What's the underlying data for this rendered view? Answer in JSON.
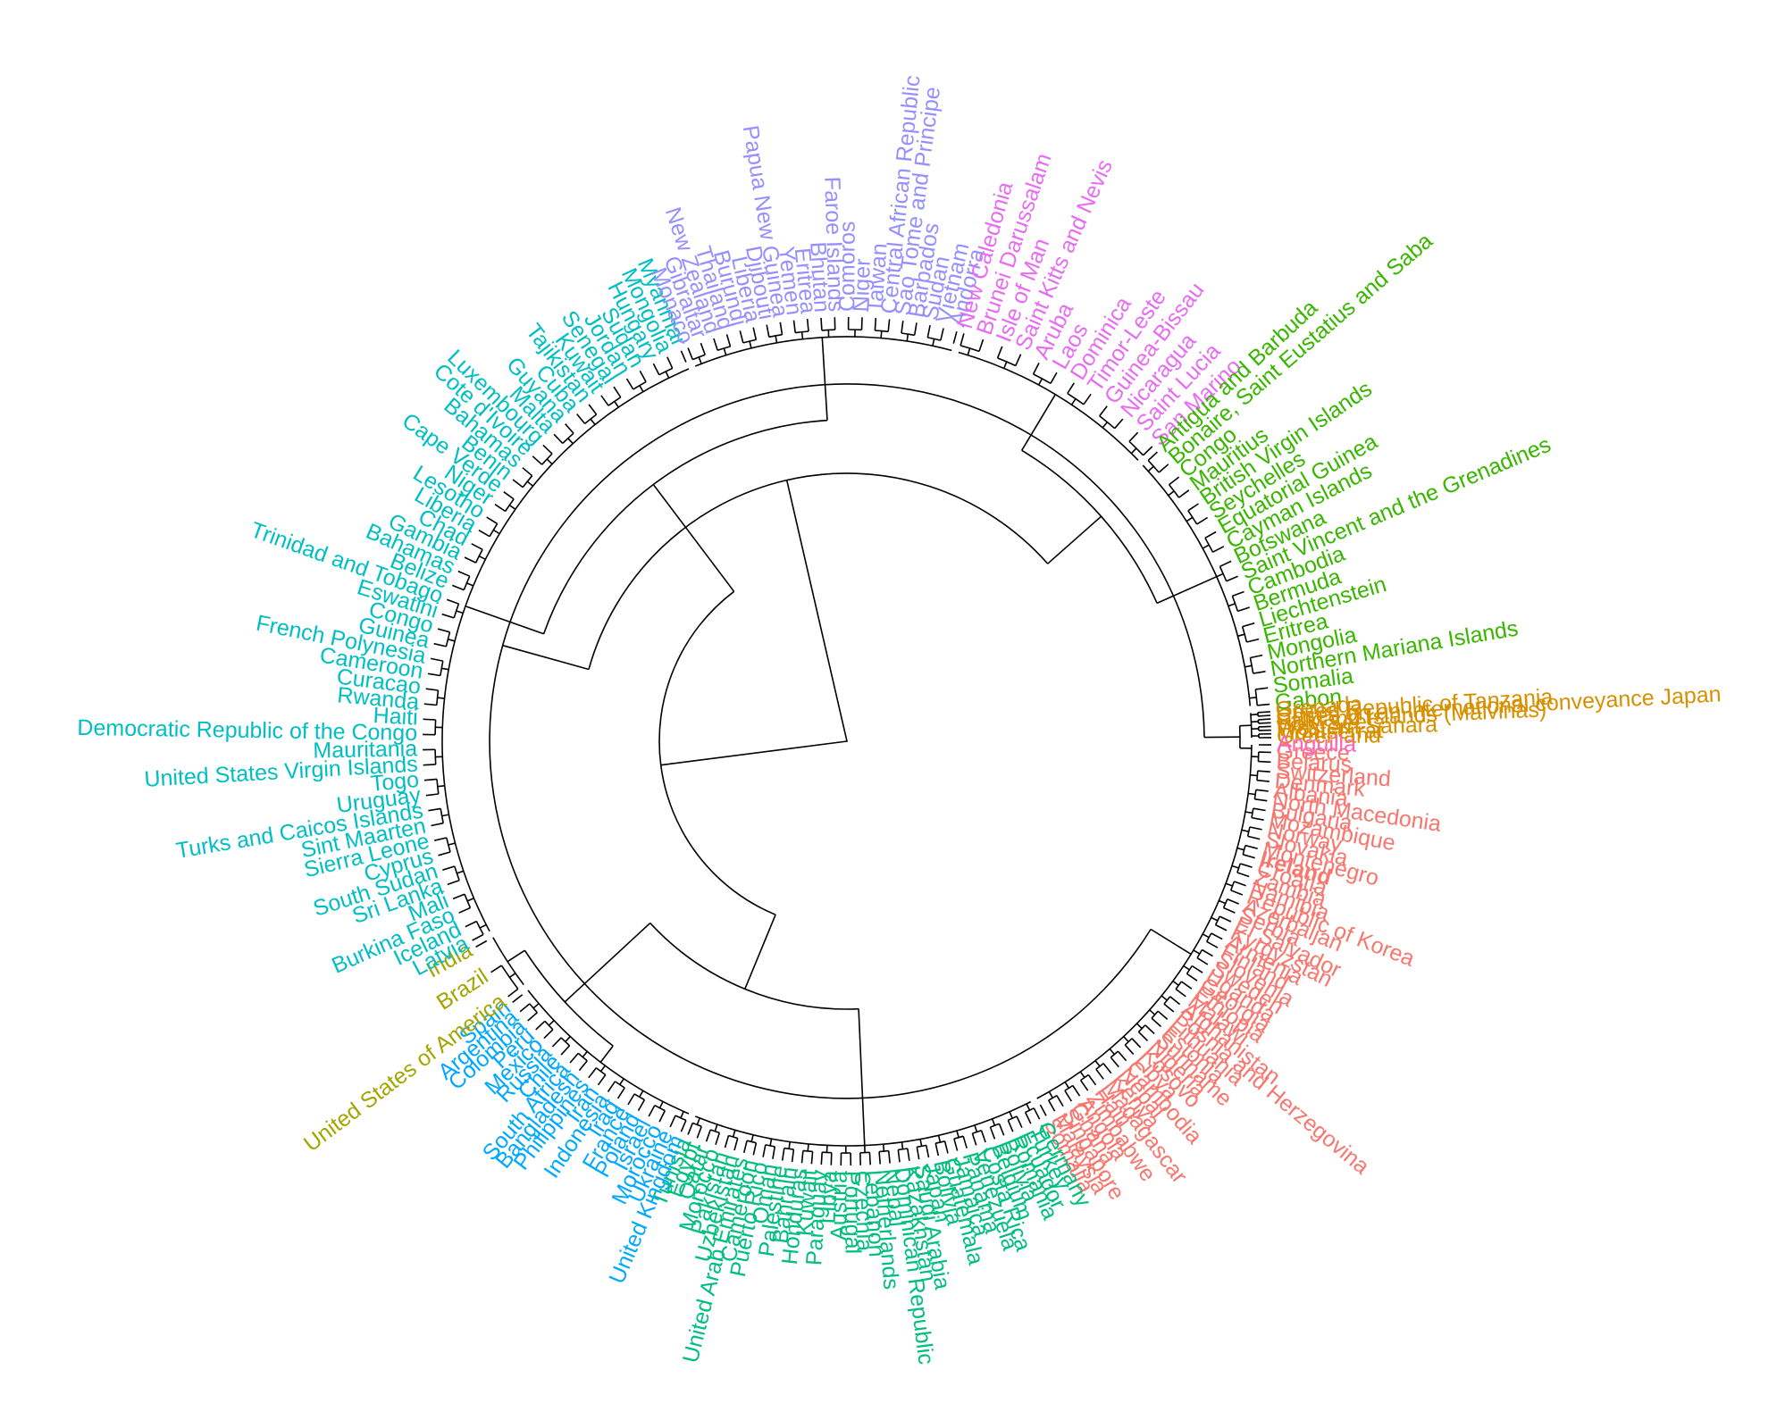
{
  "clusters": [
    {
      "name": "red",
      "color": "#F8766D",
      "leaves": [
        "Greece",
        "Belarus",
        "Switzerland",
        "Denmark",
        "Albania",
        "North Macedonia",
        "Bulgaria",
        "Mozambique",
        "Norway",
        "Slovakia",
        "Montenegro",
        "Ireland",
        "Croatia",
        "Zambia",
        "Namibia",
        "Republic of Korea",
        "Azerbaijan",
        "Serbia",
        "El Salvador",
        "Kyrgyzstan",
        "Armenia",
        "Finland",
        "Slovenia",
        "Sweden",
        "Uganda",
        "Georgia",
        "Ethiopia",
        "Malawi",
        "Afghanistan",
        "Bosnia and Herzegovina",
        "Lithuania",
        "Estonia",
        "Suriname",
        "Nigeria",
        "Kosovo",
        "Libya",
        "Cambodia",
        "Nepal",
        "Kenya",
        "Madagascar",
        "Haiti",
        "Zimbabwe",
        "Angola",
        "Ghana",
        "Singapore",
        "Malaysia",
        "Somalia"
      ]
    },
    {
      "name": "green",
      "color": "#00BF7D",
      "leaves": [
        "Germany",
        "Turkey",
        "Ecuador",
        "Romania",
        "Bolivia",
        "Belgium",
        "Costa Rica",
        "Venezuela",
        "Panama",
        "Jamaica",
        "Guatemala",
        "Bolivia",
        "Japan",
        "Saudi Arabia",
        "Kazakhstan",
        "Dominican Republic",
        "Nepal",
        "Netherlands",
        "Lebanon",
        "Czechia",
        "Portugal",
        "Austria",
        "Libya",
        "Paraguay",
        "Kuwait",
        "Honduras",
        "Bahrain",
        "Palestine",
        "Oman",
        "Puerto Rico",
        "Cameroon",
        "United Arab Emirates",
        "Uzbekistan",
        "Pakistan",
        "Morocco",
        "Qatar",
        "Egypt",
        "Tunisia"
      ]
    },
    {
      "name": "blue",
      "color": "#00A9FF",
      "leaves": [
        "United Kingdom",
        "Ukraine",
        "Morocco",
        "Israel",
        "Poland",
        "France",
        "Iraq",
        "Indonesia",
        "Iran",
        "Philippines",
        "Bangladesh",
        "South Africa",
        "Chile",
        "Russia",
        "Mexico",
        "Peru",
        "Colombia",
        "Argentina",
        "Spain"
      ]
    },
    {
      "name": "olive",
      "color": "#A3A500",
      "leaves": [
        "United States of America",
        "Brazil",
        "India"
      ]
    },
    {
      "name": "cyan",
      "color": "#00BFC4",
      "leaves": [
        "Latvia",
        "Iceland",
        "Burkina Faso",
        "Mali",
        "Sri Lanka",
        "South Sudan",
        "Cyprus",
        "Sierra Leone",
        "Sint Maarten",
        "Turks and Caicos Islands",
        "Uruguay",
        "Togo",
        "United States Virgin Islands",
        "Mauritania",
        "Democratic Republic of the Congo",
        "Haiti",
        "Rwanda",
        "Curacao",
        "Cameroon",
        "French Polynesia",
        "Guinea",
        "Congo",
        "Eswatini",
        "Trinidad and Tobago",
        "Belize",
        "Bahamas",
        "Gambia",
        "Chad",
        "Liberia",
        "Lesotho",
        "Niger",
        "Cape Verde",
        "Benin",
        "Bahamas",
        "Cote d'Ivoire",
        "Luxembourg",
        "Malta",
        "Guyana",
        "Cuba",
        "Tajikistan",
        "Kuwait",
        "Senegal",
        "Jordan",
        "Sudan",
        "Hungary",
        "Mongolia",
        "Myanmar"
      ]
    },
    {
      "name": "lavender",
      "color": "#9590FF",
      "leaves": [
        "Monaco",
        "Gibraltar",
        "New Zealand",
        "Thailand",
        "Burundi",
        "Liberia",
        "Djibouti",
        "Papua New Guinea",
        "Yemen",
        "Eritrea",
        "Bhutan",
        "Faroe Islands",
        "Comoros",
        "Niger",
        "Taiwan",
        "Central African Republic",
        "Sao Tome and Principe",
        "Barbados",
        "Sudan",
        "Vietnam",
        "Andorra"
      ]
    },
    {
      "name": "magenta",
      "color": "#E76BF3",
      "leaves": [
        "New Caledonia",
        "Brunei Darussalam",
        "Isle of Man",
        "Saint Kitts and Nevis",
        "Aruba",
        "Laos",
        "Dominica",
        "Timor-Leste",
        "Guinea-Bissau",
        "Nicaragua",
        "Saint Lucia",
        "San Marino"
      ]
    },
    {
      "name": "darkgreen",
      "color": "#39B600",
      "leaves": [
        "Antigua and Barbuda",
        "Bonaire, Saint Eustatius and Saba",
        "Congo",
        "Mauritius",
        "British Virgin Islands",
        "Seychelles",
        "Equatorial Guinea",
        "Cayman Islands",
        "Botswana",
        "Saint Vincent and the Grenadines",
        "Cambodia",
        "Bermuda",
        "Liechtenstein",
        "Eritrea",
        "Mongolia",
        "Northern Mariana Islands",
        "Somalia",
        "Gabon"
      ]
    },
    {
      "name": "orange",
      "color": "#D89000",
      "leaves": [
        "Grenada",
        "United Republic of Tanzania",
        "Cases on an international conveyance Japan",
        "Falkland Islands (Malvinas)",
        "Holy See",
        "Western Sahara",
        "Montserrat",
        "Greenland"
      ]
    },
    {
      "name": "pink",
      "color": "#FF62BC",
      "leaves": [
        "Anguilla"
      ]
    }
  ],
  "highlight": "Ireland"
}
